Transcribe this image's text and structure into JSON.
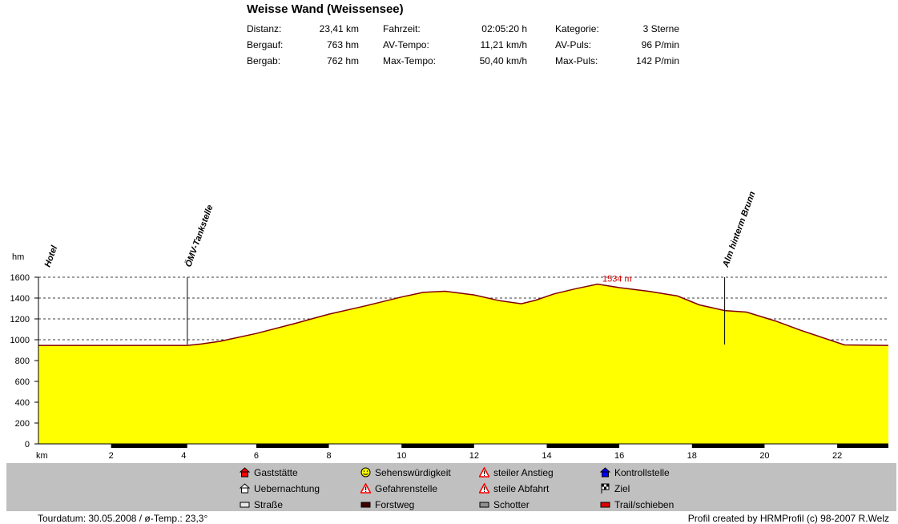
{
  "header": {
    "title": "Weisse Wand (Weissensee)",
    "stats": [
      {
        "label": "Distanz:",
        "value": "23,41 km"
      },
      {
        "label": "Bergauf:",
        "value": "763 hm"
      },
      {
        "label": "Bergab:",
        "value": "762 hm"
      },
      {
        "label": "Fahrzeit:",
        "value": "02:05:20 h"
      },
      {
        "label": "AV-Tempo:",
        "value": "11,21 km/h"
      },
      {
        "label": "Max-Tempo:",
        "value": "50,40 km/h"
      },
      {
        "label": "Kategorie:",
        "value": "3 Sterne"
      },
      {
        "label": "AV-Puls:",
        "value": "96 P/min"
      },
      {
        "label": "Max-Puls:",
        "value": "142 P/min"
      }
    ]
  },
  "chart_data": {
    "type": "area",
    "title": "",
    "xlabel": "km",
    "ylabel": "hm",
    "xlim": [
      0,
      23.41
    ],
    "ylim": [
      0,
      1600
    ],
    "x_ticks": [
      2,
      4,
      6,
      8,
      10,
      12,
      14,
      16,
      18,
      20,
      22
    ],
    "y_ticks": [
      0,
      200,
      400,
      600,
      800,
      1000,
      1200,
      1400,
      1600
    ],
    "grid": true,
    "fill_color": "#ffff00",
    "line_color": "#800000",
    "profile": {
      "x": [
        0,
        4.1,
        4.5,
        5.0,
        6.0,
        7.0,
        8.0,
        9.0,
        10.0,
        10.6,
        11.2,
        12.0,
        12.7,
        13.3,
        13.7,
        14.2,
        14.8,
        15.4,
        16.0,
        16.8,
        17.6,
        18.2,
        18.9,
        19.5,
        20.3,
        21.0,
        21.6,
        22.2,
        23.41
      ],
      "y": [
        945,
        945,
        960,
        985,
        1060,
        1150,
        1245,
        1325,
        1410,
        1455,
        1465,
        1430,
        1375,
        1345,
        1380,
        1440,
        1490,
        1534,
        1500,
        1465,
        1420,
        1335,
        1280,
        1265,
        1180,
        1090,
        1020,
        950,
        945
      ]
    },
    "max_label": "1534 m",
    "max_x": 15.4,
    "waypoints": [
      {
        "name": "Hotel",
        "km": 0
      },
      {
        "name": "ÖMV-Tankstelle",
        "km": 4.1
      },
      {
        "name": "Alm hinterm Brunn",
        "km": 18.9
      }
    ],
    "surface_bands": [
      {
        "from": 0,
        "to": 2,
        "type": "Straße"
      },
      {
        "from": 2,
        "to": 4.1,
        "type": "Forstweg"
      },
      {
        "from": 4.1,
        "to": 6,
        "type": "Straße"
      },
      {
        "from": 6,
        "to": 8,
        "type": "Forstweg"
      },
      {
        "from": 8,
        "to": 10,
        "type": "Straße"
      },
      {
        "from": 10,
        "to": 12,
        "type": "Forstweg"
      },
      {
        "from": 12,
        "to": 14,
        "type": "Straße"
      },
      {
        "from": 14,
        "to": 16,
        "type": "Forstweg"
      },
      {
        "from": 16,
        "to": 18,
        "type": "Straße"
      },
      {
        "from": 18,
        "to": 20,
        "type": "Forstweg"
      },
      {
        "from": 20,
        "to": 22,
        "type": "Straße"
      },
      {
        "from": 22,
        "to": 23.41,
        "type": "Forstweg"
      }
    ]
  },
  "legend": [
    {
      "label": "Gaststätte",
      "icon": "red-house-icon",
      "color": "#ff0000"
    },
    {
      "label": "Uebernachtung",
      "icon": "lodging-house-icon",
      "color": "#ffffff"
    },
    {
      "label": "Straße",
      "icon": "road-swatch-icon",
      "color": "#e8e8e8"
    },
    {
      "label": "Sehenswürdigkeit",
      "icon": "smiley-icon",
      "color": "#ffff00"
    },
    {
      "label": "Gefahrenstelle",
      "icon": "warning-icon",
      "color": "#ff0000"
    },
    {
      "label": "Forstweg",
      "icon": "forest-road-swatch-icon",
      "color": "#400000"
    },
    {
      "label": "steiler Anstieg",
      "icon": "steep-climb-icon",
      "color": "#ff0000"
    },
    {
      "label": "steile Abfahrt",
      "icon": "steep-descent-icon",
      "color": "#ff0000"
    },
    {
      "label": "Schotter",
      "icon": "gravel-swatch-icon",
      "color": "#909090"
    },
    {
      "label": "Kontrollstelle",
      "icon": "checkpoint-house-icon",
      "color": "#0000ff"
    },
    {
      "label": "Ziel",
      "icon": "finish-flag-icon",
      "color": "#000000"
    },
    {
      "label": "Trail/schieben",
      "icon": "trail-swatch-icon",
      "color": "#e00000"
    }
  ],
  "footer": {
    "left": "Tourdatum: 30.05.2008  /  ø-Temp.: 23,3°",
    "right": "Profil created by HRMProfil (c) 98-2007 R.Welz"
  }
}
